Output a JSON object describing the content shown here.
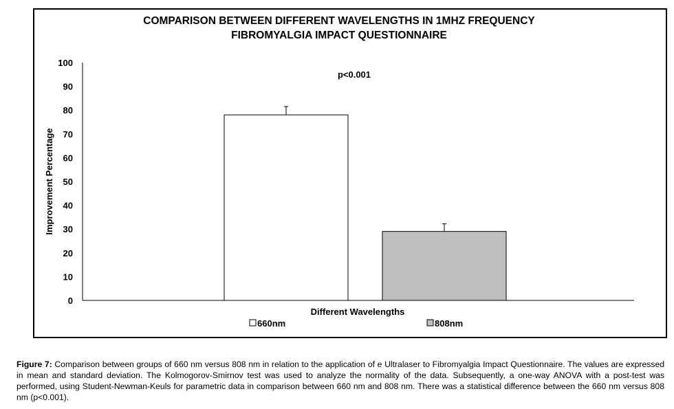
{
  "chart_data": {
    "type": "bar",
    "title": [
      "COMPARISON BETWEEN DIFFERENT WAVELENGTHS IN 1MHZ FREQUENCY",
      "FIBROMYALGIA IMPACT QUESTIONNAIRE"
    ],
    "annotation": "p<0.001",
    "xlabel": "Different Wavelengths",
    "ylabel": "Improvement Percentage",
    "ylim": [
      0,
      100
    ],
    "yticks": [
      0,
      10,
      20,
      30,
      40,
      50,
      60,
      70,
      80,
      90,
      100
    ],
    "grid": false,
    "legend_position": "bottom",
    "series": [
      {
        "name": "660nm",
        "value": 78,
        "error": 3.5,
        "color": "#ffffff"
      },
      {
        "name": "808nm",
        "value": 29,
        "error": 3.2,
        "color": "#bfbfbf"
      }
    ]
  },
  "caption": {
    "label": "Figure 7:",
    "text": " Comparison between groups of 660 nm versus 808 nm in relation to the application of e Ultralaser to Fibromyalgia Impact Questionnaire. The values are expressed in mean and standard deviation. The Kolmogorov-Smirnov test was used to analyze the normality of the data. Subsequently, a one-way ANOVA with a post-test was performed, using Student-Newman-Keuls for parametric data in comparison between 660 nm and 808 nm. There was a statistical difference between the 660 nm versus 808 nm (p<0.001)."
  }
}
